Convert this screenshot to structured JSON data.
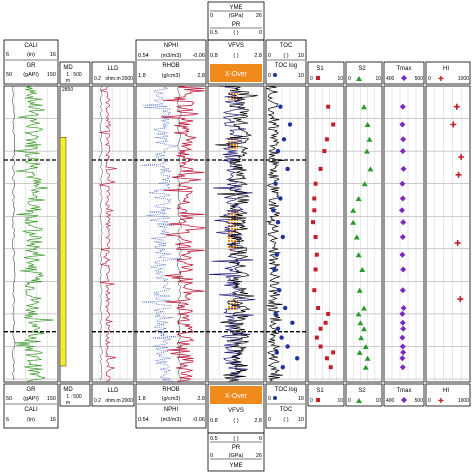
{
  "top_header": {
    "yme": {
      "title": "YME",
      "min": "0",
      "unit": "(GPa)",
      "max": "26"
    },
    "pr": {
      "title": "PR",
      "min": "0.5",
      "unit": "( )",
      "max": "0"
    }
  },
  "bottom_header": {
    "yme": {
      "title": "YME",
      "min": "0",
      "unit": "(GPa)",
      "max": "26"
    },
    "pr": {
      "title": "PR",
      "min": "0.5",
      "unit": "( )",
      "max": "0"
    }
  },
  "tracks": {
    "cali": {
      "title": "CALI",
      "min": "6",
      "unit": "(in)",
      "max": "16"
    },
    "gr": {
      "title": "GR",
      "min": "50",
      "unit": "(gAPI)",
      "max": "150"
    },
    "md": {
      "title": "MD",
      "scale_top": "1 : 500",
      "unit": "m",
      "depth_label": "2850"
    },
    "lld": {
      "title": "LLD",
      "min": "0.2",
      "unit": "ohm.m",
      "max": "2000"
    },
    "nphi": {
      "title": "NPHI",
      "min": "0.54",
      "unit": "(m3/m3)",
      "max": "-0.06"
    },
    "rhob": {
      "title": "RHOB",
      "min": "1.8",
      "unit": "(g/cm3)",
      "max": "2.8"
    },
    "vfvs": {
      "title": "VFVS",
      "min": "0.8",
      "unit": "( )",
      "max": "2.8"
    },
    "xover": {
      "label": "X-Over"
    },
    "toc": {
      "title": "TOC",
      "min": "0",
      "unit": "( )",
      "max": "10"
    },
    "toclog": {
      "title": "TOC log",
      "min": "0",
      "max": "10"
    },
    "s1": {
      "title": "S1",
      "min": "0",
      "max": "10"
    },
    "s2": {
      "title": "S2",
      "min": "0",
      "max": "10"
    },
    "tmax": {
      "title": "Tmax",
      "min": "400",
      "max": "500"
    },
    "hi": {
      "title": "HI",
      "min": "0",
      "max": "1000"
    }
  },
  "colors": {
    "gr": "#3a9a2a",
    "lld": "#c0304a",
    "nphi": "#3050c0",
    "rhob": "#c02040",
    "xover": "#f08a1a",
    "toc": "#2030a0",
    "s1": "#c0202a",
    "s2": "#2a9a2a",
    "tmax": "#7a2ac0",
    "hi": "#c0202a",
    "zone": "#f4ec30"
  },
  "chart_data": {
    "type": "well-log",
    "depth_range": [
      0,
      100
    ],
    "depth_note": "relative depth (0 = top of plotted interval, 100 = bottom)",
    "zone_bars": [
      {
        "from": 18,
        "to": 100
      }
    ],
    "dashed_markers": [
      25,
      83
    ],
    "s1": {
      "depth": [
        7,
        13,
        18,
        22,
        28,
        33,
        38,
        42,
        46,
        51,
        57,
        62,
        69,
        75,
        77,
        80,
        82,
        85,
        88,
        90,
        92,
        95
      ],
      "value": [
        1.6,
        2.0,
        1.5,
        1.3,
        1.0,
        0.6,
        0.5,
        0.5,
        0.4,
        0.6,
        0.7,
        0.6,
        0.5,
        0.8,
        1.6,
        1.4,
        1.0,
        0.7,
        1.0,
        2.0,
        1.5,
        1.8
      ]
    },
    "s2": {
      "depth": [
        7,
        13,
        18,
        22,
        28,
        33,
        38,
        42,
        46,
        51,
        57,
        62,
        69,
        75,
        77,
        80,
        82,
        85,
        88,
        90,
        92,
        95
      ],
      "value": [
        5.0,
        6.0,
        6.5,
        5.8,
        6.8,
        5.2,
        3.5,
        2.0,
        2.0,
        3.0,
        3.5,
        4.5,
        3.8,
        5.0,
        3.5,
        4.0,
        5.0,
        4.2,
        5.5,
        3.8,
        6.0,
        5.5
      ]
    },
    "tmax": {
      "depth": [
        7,
        13,
        18,
        22,
        28,
        33,
        38,
        42,
        46,
        51,
        57,
        62,
        69,
        75,
        77,
        80,
        82,
        85,
        88,
        90,
        92,
        95
      ],
      "value": [
        447,
        446,
        448,
        447,
        449,
        446,
        447,
        445,
        448,
        447,
        446,
        448,
        447,
        449,
        446,
        447,
        448,
        446,
        447,
        448,
        446,
        447
      ]
    },
    "hi": {
      "depth": [
        7,
        13,
        24,
        30,
        53,
        72
      ],
      "value": [
        700,
        620,
        800,
        740,
        720,
        780
      ]
    },
    "toc_points": {
      "depth": [
        7,
        13,
        18,
        22,
        28,
        33,
        38,
        42,
        46,
        51,
        57,
        62,
        69,
        75,
        77,
        80,
        82,
        85,
        88,
        90,
        92,
        95
      ],
      "value": [
        1.2,
        2.0,
        1.5,
        1.0,
        1.8,
        0.8,
        1.2,
        0.6,
        1.0,
        1.4,
        0.9,
        0.7,
        1.1,
        1.6,
        0.8,
        2.2,
        1.0,
        1.3,
        1.8,
        0.9,
        2.6,
        1.4
      ]
    }
  }
}
